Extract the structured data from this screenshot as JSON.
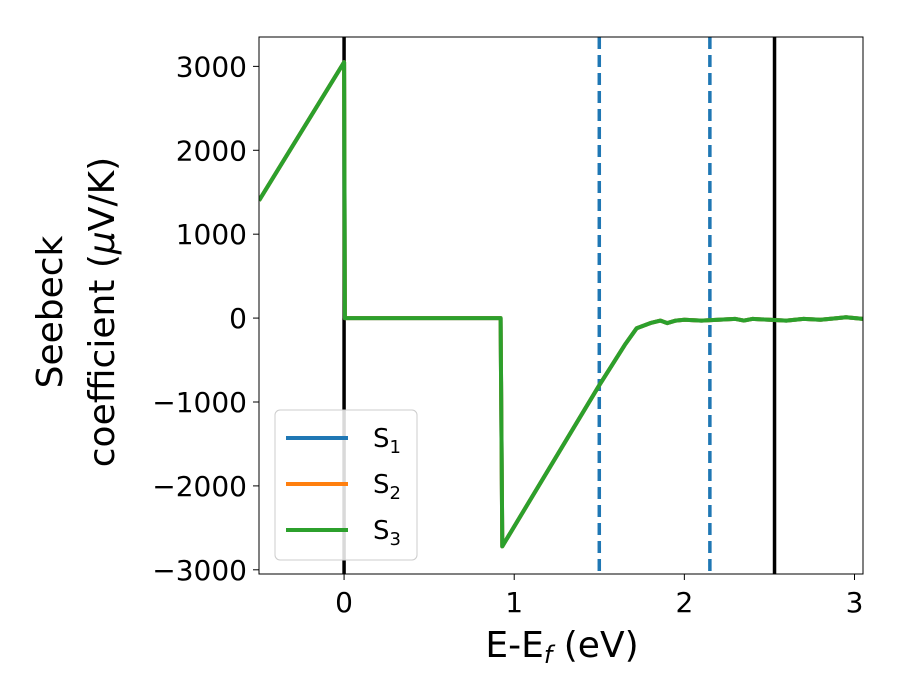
{
  "chart_data": {
    "type": "line",
    "xlabel": "E-E_f (eV)",
    "xlabel_main": "E-E",
    "xlabel_sub": "f",
    "xlabel_unit": " (eV)",
    "ylabel_line1": "Seebeck",
    "ylabel_line2_text": "coefficient  (",
    "ylabel_line2_mu": "μ",
    "ylabel_line2_unit": "V/K)",
    "xlim": [
      -0.5,
      3.05
    ],
    "ylim": [
      -3050,
      3350
    ],
    "x_ticks": [
      0,
      1,
      2,
      3
    ],
    "x_tick_labels": [
      "0",
      "1",
      "2",
      "3"
    ],
    "y_ticks": [
      -3000,
      -2000,
      -1000,
      0,
      1000,
      2000,
      3000
    ],
    "y_tick_labels": [
      "−3000",
      "−2000",
      "−1000",
      "0",
      "1000",
      "2000",
      "3000"
    ],
    "grid": false,
    "legend_position": "lower-left",
    "vertical_lines": [
      {
        "x": 0.0,
        "style": "solid",
        "color": "#000000"
      },
      {
        "x": 1.5,
        "style": "dashed",
        "color": "#1f77b4"
      },
      {
        "x": 2.15,
        "style": "dashed",
        "color": "#1f77b4"
      },
      {
        "x": 2.53,
        "style": "solid",
        "color": "#000000"
      }
    ],
    "series": [
      {
        "name": "S1",
        "label_main": "S",
        "label_sub": "1",
        "color": "#1f77b4",
        "x": [
          -0.5,
          0.0,
          0.005,
          0.92,
          0.93,
          1.5,
          1.65,
          1.72,
          1.8,
          1.86,
          1.9,
          1.95,
          2.0,
          2.1,
          2.2,
          2.3,
          2.35,
          2.4,
          2.5,
          2.6,
          2.7,
          2.8,
          2.9,
          2.95,
          3.05
        ],
        "y": [
          1400,
          3050,
          0,
          0,
          -2720,
          -800,
          -320,
          -120,
          -60,
          -30,
          -60,
          -30,
          -20,
          -30,
          -20,
          -10,
          -30,
          -10,
          -20,
          -30,
          -10,
          -20,
          0,
          10,
          -10
        ]
      },
      {
        "name": "S2",
        "label_main": "S",
        "label_sub": "2",
        "color": "#ff7f0e",
        "x": [
          -0.5,
          0.0,
          0.005,
          0.92,
          0.93,
          1.5,
          1.65,
          1.72,
          1.8,
          1.86,
          1.9,
          1.95,
          2.0,
          2.1,
          2.2,
          2.3,
          2.35,
          2.4,
          2.5,
          2.6,
          2.7,
          2.8,
          2.9,
          2.95,
          3.05
        ],
        "y": [
          1400,
          3050,
          0,
          0,
          -2720,
          -800,
          -320,
          -120,
          -60,
          -30,
          -60,
          -30,
          -20,
          -30,
          -20,
          -10,
          -30,
          -10,
          -20,
          -30,
          -10,
          -20,
          0,
          10,
          -10
        ]
      },
      {
        "name": "S3",
        "label_main": "S",
        "label_sub": "3",
        "color": "#2ca02c",
        "x": [
          -0.5,
          0.0,
          0.005,
          0.92,
          0.93,
          1.5,
          1.65,
          1.72,
          1.8,
          1.86,
          1.9,
          1.95,
          2.0,
          2.1,
          2.2,
          2.3,
          2.35,
          2.4,
          2.5,
          2.6,
          2.7,
          2.8,
          2.9,
          2.95,
          3.05
        ],
        "y": [
          1400,
          3050,
          0,
          0,
          -2720,
          -800,
          -320,
          -120,
          -60,
          -30,
          -60,
          -30,
          -20,
          -30,
          -20,
          -10,
          -30,
          -10,
          -20,
          -30,
          -10,
          -20,
          0,
          10,
          -10
        ]
      }
    ]
  }
}
